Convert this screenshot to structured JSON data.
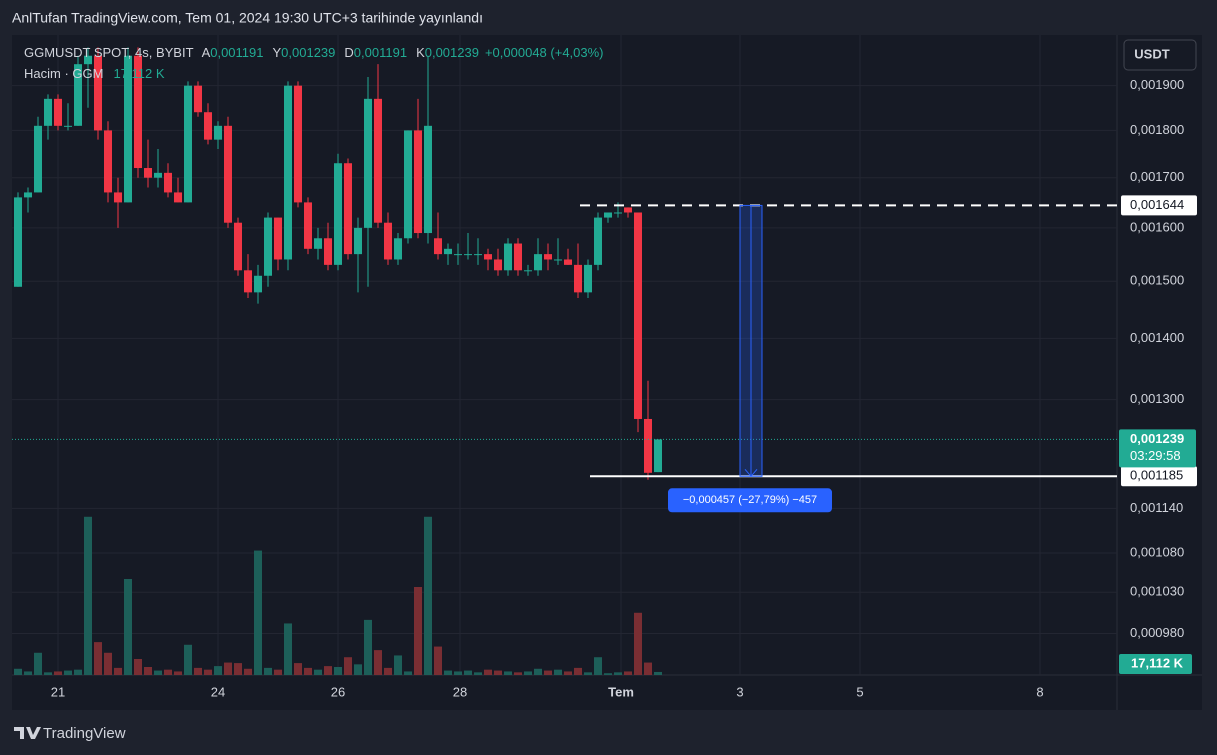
{
  "chart_data": {
    "type": "candlestick",
    "title": "AnlTufan TradingView.com, Tem 01, 2024 19:30 UTC+3 tarihinde yayınlandı",
    "symbol": "GGMUSDT SPOT, 4s, BYBIT",
    "legend_items": [
      [
        "A",
        "0,001191"
      ],
      [
        "Y",
        "0,001239"
      ],
      [
        "D",
        "0,001191"
      ],
      [
        "K",
        "0,001239"
      ]
    ],
    "change": "+0,000048 (+4,03%)",
    "volume_name": "Hacim · GGM",
    "volume_last_label": "17,112 K",
    "currency": "USDT",
    "brand": "TradingView",
    "open": [
      0.00149,
      0.00166,
      0.00167,
      0.00181,
      0.00187,
      0.00181,
      0.00181,
      0.00195,
      0.00197,
      0.0018,
      0.00167,
      0.00165,
      0.00197,
      0.00172,
      0.0017,
      0.00171,
      0.00167,
      0.00165,
      0.0019,
      0.00184,
      0.00178,
      0.00181,
      0.00161,
      0.00152,
      0.00148,
      0.00151,
      0.00162,
      0.00154,
      0.0019,
      0.00165,
      0.00156,
      0.00158,
      0.00153,
      0.00173,
      0.00155,
      0.0016,
      0.00187,
      0.00161,
      0.00154,
      0.00158,
      0.0018,
      0.00159,
      0.00158,
      0.00155,
      0.00155,
      0.00155,
      0.00155,
      0.00155,
      0.00154,
      0.00152,
      0.00157,
      0.00152,
      0.00152,
      0.00155,
      0.00154,
      0.00154,
      0.00153,
      0.00148,
      0.00153,
      0.00162,
      0.00163,
      0.00164,
      0.00163,
      0.00127,
      0.001191
    ],
    "high": [
      0.00167,
      0.00168,
      0.00183,
      0.00188,
      0.00188,
      0.00186,
      0.00197,
      0.00199,
      0.00199,
      0.00182,
      0.0017,
      0.00199,
      0.00199,
      0.00178,
      0.00176,
      0.00173,
      0.0017,
      0.00191,
      0.00191,
      0.00186,
      0.00182,
      0.00183,
      0.00162,
      0.00155,
      0.00153,
      0.00163,
      0.00162,
      0.00191,
      0.00191,
      0.00166,
      0.0016,
      0.00161,
      0.00175,
      0.00174,
      0.00162,
      0.00192,
      0.00195,
      0.00163,
      0.00159,
      0.0018,
      0.00187,
      0.00197,
      0.00163,
      0.00157,
      0.00157,
      0.00159,
      0.00158,
      0.00156,
      0.00156,
      0.00158,
      0.00158,
      0.00153,
      0.00158,
      0.00157,
      0.00158,
      0.00156,
      0.00157,
      0.00154,
      0.00163,
      0.00163,
      0.00165,
      0.00164,
      0.00163,
      0.00133,
      0.001239
    ],
    "low": [
      0.00149,
      0.00163,
      0.00167,
      0.00178,
      0.0018,
      0.0018,
      0.00181,
      0.00185,
      0.00178,
      0.00165,
      0.0016,
      0.00165,
      0.0017,
      0.00168,
      0.00168,
      0.00166,
      0.00165,
      0.00165,
      0.00183,
      0.00177,
      0.00176,
      0.0016,
      0.00151,
      0.00147,
      0.00146,
      0.00149,
      0.00152,
      0.00152,
      0.00164,
      0.00155,
      0.00154,
      0.00152,
      0.00152,
      0.00154,
      0.00148,
      0.00149,
      0.0016,
      0.00153,
      0.00153,
      0.00157,
      0.00158,
      0.00157,
      0.00154,
      0.00153,
      0.00153,
      0.00154,
      0.00153,
      0.00152,
      0.00151,
      0.00151,
      0.00151,
      0.00151,
      0.00151,
      0.00152,
      0.00153,
      0.00153,
      0.00147,
      0.00147,
      0.00152,
      0.00161,
      0.00162,
      0.00162,
      0.00125,
      0.00118,
      0.001191
    ],
    "close": [
      0.00166,
      0.00167,
      0.00181,
      0.00187,
      0.00181,
      0.00181,
      0.00195,
      0.00197,
      0.0018,
      0.00167,
      0.00165,
      0.00197,
      0.00172,
      0.0017,
      0.00171,
      0.00167,
      0.00165,
      0.0019,
      0.00184,
      0.00178,
      0.00181,
      0.00161,
      0.00152,
      0.00148,
      0.00151,
      0.00162,
      0.00154,
      0.0019,
      0.00165,
      0.00156,
      0.00158,
      0.00153,
      0.00173,
      0.00155,
      0.0016,
      0.00187,
      0.00161,
      0.00154,
      0.00158,
      0.0018,
      0.00159,
      0.00181,
      0.00155,
      0.00156,
      0.00155,
      0.00155,
      0.00155,
      0.00154,
      0.00152,
      0.00157,
      0.00152,
      0.00152,
      0.00155,
      0.00154,
      0.00154,
      0.00153,
      0.00148,
      0.00153,
      0.00162,
      0.00163,
      0.00163,
      0.00163,
      0.00127,
      0.00119,
      0.001239
    ],
    "volume": [
      35,
      20,
      125,
      15,
      20,
      25,
      30,
      890,
      185,
      125,
      40,
      540,
      90,
      45,
      25,
      30,
      20,
      170,
      40,
      30,
      50,
      70,
      67,
      35,
      700,
      40,
      30,
      290,
      67,
      40,
      30,
      50,
      45,
      100,
      60,
      310,
      140,
      40,
      110,
      20,
      495,
      890,
      160,
      25,
      20,
      25,
      15,
      30,
      25,
      20,
      15,
      20,
      35,
      25,
      30,
      20,
      40,
      15,
      100,
      10,
      15,
      20,
      350,
      70,
      17.112
    ],
    "up_color": "#22ab94",
    "down_color": "#f23645",
    "up_volume_color": "#1d5f59",
    "down_volume_color": "#7a2e33",
    "log_scale": true,
    "ylim": [
      0.000932,
      0.00202
    ],
    "yticks": [
      {
        "value": 0.0019,
        "label": "0,001900"
      },
      {
        "value": 0.0018,
        "label": "0,001800"
      },
      {
        "value": 0.0017,
        "label": "0,001700"
      },
      {
        "value": 0.0016,
        "label": "0,001600"
      },
      {
        "value": 0.0015,
        "label": "0,001500"
      },
      {
        "value": 0.0014,
        "label": "0,001400"
      },
      {
        "value": 0.0013,
        "label": "0,001300"
      },
      {
        "value": 0.00114,
        "label": "0,001140"
      },
      {
        "value": 0.00108,
        "label": "0,001080"
      },
      {
        "value": 0.00103,
        "label": "0,001030"
      },
      {
        "value": 0.00098,
        "label": "0,000980"
      }
    ],
    "volume_ylim": [
      0,
      3600
    ],
    "xlim": [
      -0.6,
      109.9
    ],
    "xticks": [
      {
        "value": 4,
        "label": "21"
      },
      {
        "value": 20,
        "label": "24"
      },
      {
        "value": 32,
        "label": "26"
      },
      {
        "value": 44.2,
        "label": "28"
      },
      {
        "value": 60.3,
        "label": "Tem"
      },
      {
        "value": 72.2,
        "label": "3"
      },
      {
        "value": 84.2,
        "label": "5"
      },
      {
        "value": 102.2,
        "label": "8"
      }
    ],
    "grid": true,
    "levels": [
      {
        "value": 0.001644,
        "label": "0,001644"
      },
      {
        "value": 0.001185,
        "label": "0,001185"
      }
    ],
    "last_price": {
      "value": 0.001239,
      "label": "0,001239"
    },
    "countdown": "03:29:58",
    "measure_label": "−0,000457 (−27,79%) −457"
  }
}
